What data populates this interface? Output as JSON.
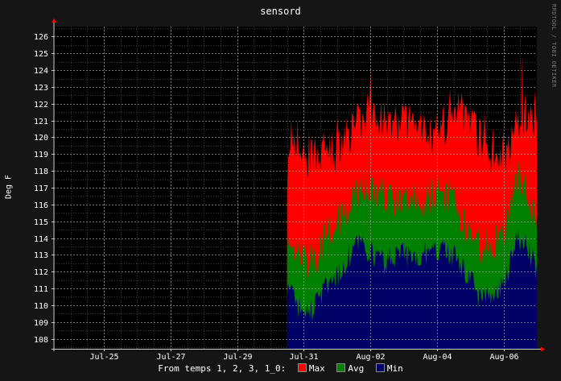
{
  "chart_data": {
    "type": "area",
    "title": "sensord",
    "ylabel": "Deg F",
    "watermark": "RRDTOOL / TOBI OETIKER",
    "ylim": [
      107.4,
      126.6
    ],
    "y_ticks": [
      108,
      109,
      110,
      111,
      112,
      113,
      114,
      115,
      116,
      117,
      118,
      119,
      120,
      121,
      122,
      123,
      124,
      125,
      126
    ],
    "x_range": [
      "2011-07-23T12:00",
      "2011-08-07T00:00"
    ],
    "x_ticks": [
      {
        "label": "Jul-25",
        "t": "2011-07-25"
      },
      {
        "label": "Jul-27",
        "t": "2011-07-27"
      },
      {
        "label": "Jul-29",
        "t": "2011-07-29"
      },
      {
        "label": "Jul-31",
        "t": "2011-07-31"
      },
      {
        "label": "Aug-02",
        "t": "2011-08-02"
      },
      {
        "label": "Aug-04",
        "t": "2011-08-04"
      },
      {
        "label": "Aug-06",
        "t": "2011-08-06"
      }
    ],
    "grid": true,
    "data_start": "2011-07-30T12:00",
    "legend_prefix": "From temps 1, 2, 3, 1_0:",
    "series": [
      {
        "name": "Max",
        "color": "#ff0000",
        "values": [
          118,
          119.5,
          118.5,
          119,
          119.5,
          119,
          120,
          120.5,
          121,
          121.5,
          121,
          121,
          121,
          121,
          120.5,
          120,
          120.5,
          121,
          122,
          121,
          120,
          119,
          118.5,
          119,
          121,
          121.5,
          121
        ]
      },
      {
        "name": "Avg",
        "color": "#008000",
        "values": [
          114,
          113,
          112.5,
          113,
          114,
          114.5,
          115.5,
          116.5,
          117,
          117,
          116.5,
          116.5,
          116,
          116.5,
          116,
          116.5,
          117,
          116.5,
          115.5,
          114.5,
          113.5,
          113.5,
          114,
          115,
          118,
          116.5,
          115
        ]
      },
      {
        "name": "Min",
        "color": "#000066",
        "values": [
          111,
          110,
          109.5,
          110,
          111,
          111.5,
          112.5,
          113.5,
          113.5,
          113,
          112.5,
          113,
          113,
          113,
          113,
          113,
          113.5,
          113,
          112.5,
          111.5,
          110.5,
          110.5,
          111,
          112,
          114,
          113.5,
          112
        ]
      }
    ]
  }
}
